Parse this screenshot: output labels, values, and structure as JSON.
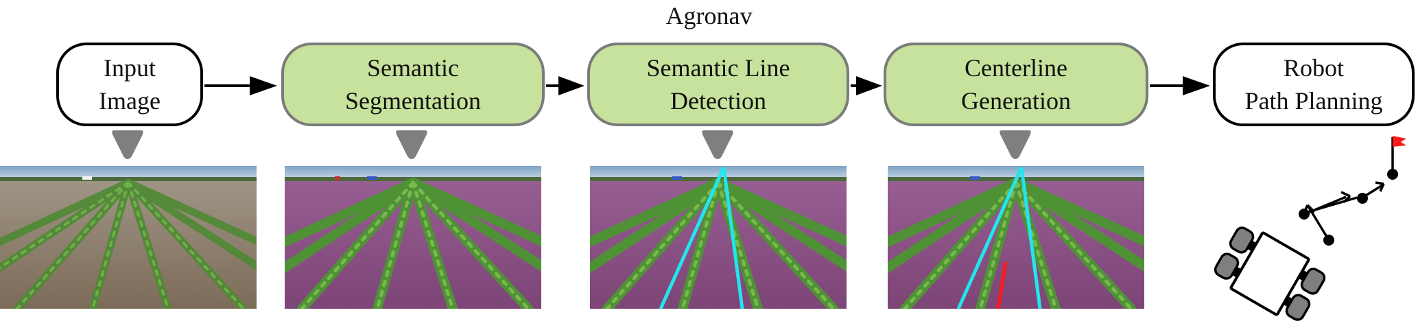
{
  "title": "Agronav",
  "stages": [
    {
      "label": "Input\nImage",
      "style": "plain"
    },
    {
      "label": "Semantic\nSegmentation",
      "style": "green"
    },
    {
      "label": "Semantic Line\nDetection",
      "style": "green"
    },
    {
      "label": "Centerline\nGeneration",
      "style": "green"
    },
    {
      "label": "Robot\nPath Planning",
      "style": "plain"
    }
  ],
  "colors": {
    "stage_fill": "#c6e29c",
    "stage_border": "#7b7b7b",
    "crop_mask": "#8e4f86",
    "detected_lines": "#22e5ee",
    "centerline": "#ff1a1a",
    "goal_flag": "#ff1a1a"
  },
  "icons": [
    "arrow-right-icon",
    "connector-icon",
    "robot-icon",
    "goal-flag-icon"
  ]
}
